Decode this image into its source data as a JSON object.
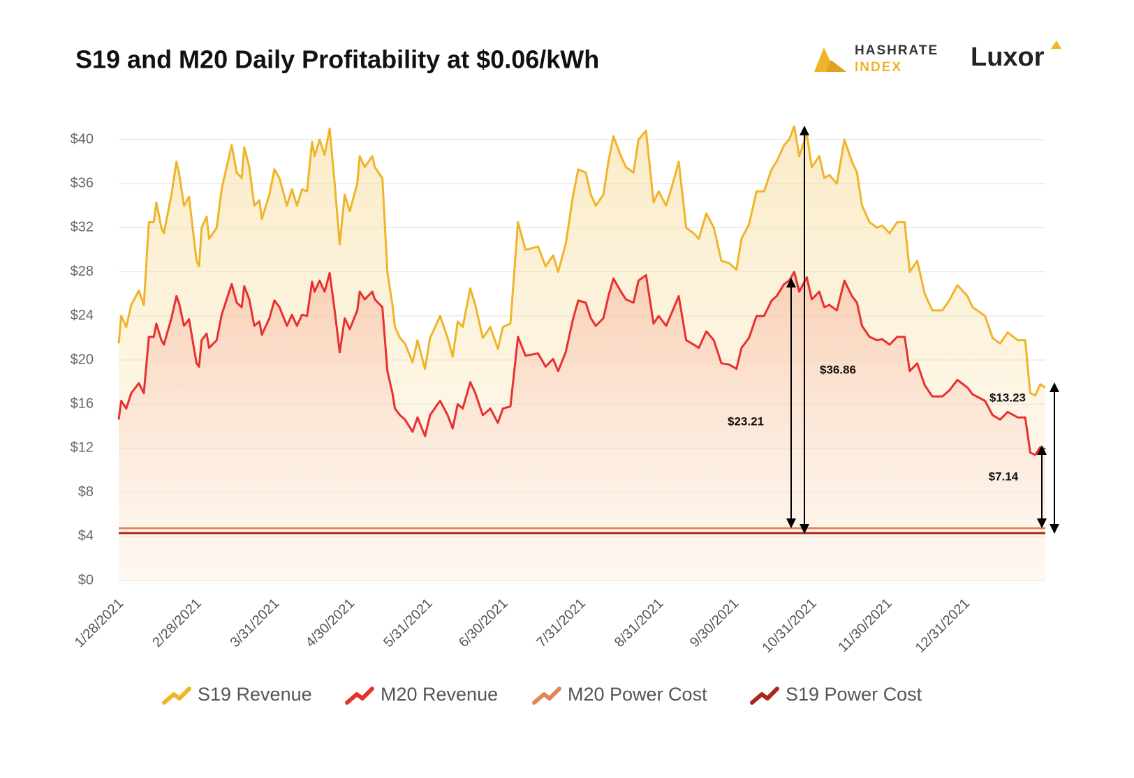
{
  "chart_data": {
    "type": "line",
    "title": "S19 and M20 Daily Profitability at $0.06/kWh",
    "logos": {
      "hashrate": "HASHRATE",
      "index": "INDEX",
      "luxor": "Luxor"
    },
    "x": [
      "1/28/2021",
      "1/29/2021",
      "1/31/2021",
      "2/2/2021",
      "2/5/2021",
      "2/7/2021",
      "2/9/2021",
      "2/11/2021",
      "2/12/2021",
      "2/14/2021",
      "2/15/2021",
      "2/18/2021",
      "2/20/2021",
      "2/21/2021",
      "2/23/2021",
      "2/25/2021",
      "2/28/2021",
      "3/1/2021",
      "3/2/2021",
      "3/4/2021",
      "3/5/2021",
      "3/8/2021",
      "3/10/2021",
      "3/12/2021",
      "3/14/2021",
      "3/16/2021",
      "3/18/2021",
      "3/19/2021",
      "3/21/2021",
      "3/23/2021",
      "3/25/2021",
      "3/26/2021",
      "3/29/2021",
      "3/31/2021",
      "4/2/2021",
      "4/5/2021",
      "4/7/2021",
      "4/9/2021",
      "4/11/2021",
      "4/13/2021",
      "4/15/2021",
      "4/16/2021",
      "4/18/2021",
      "4/20/2021",
      "4/22/2021",
      "4/24/2021",
      "4/26/2021",
      "4/28/2021",
      "4/30/2021",
      "5/3/2021",
      "5/4/2021",
      "5/6/2021",
      "5/9/2021",
      "5/10/2021",
      "5/13/2021",
      "5/15/2021",
      "5/17/2021",
      "5/18/2021",
      "5/20/2021",
      "5/22/2021",
      "5/25/2021",
      "5/27/2021",
      "5/30/2021",
      "6/1/2021",
      "6/4/2021",
      "6/5/2021",
      "6/8/2021",
      "6/10/2021",
      "6/12/2021",
      "6/14/2021",
      "6/17/2021",
      "6/19/2021",
      "6/22/2021",
      "6/25/2021",
      "6/28/2021",
      "6/30/2021",
      "7/3/2021",
      "7/6/2021",
      "7/9/2021",
      "7/14/2021",
      "7/17/2021",
      "7/20/2021",
      "7/22/2021",
      "7/25/2021",
      "7/28/2021",
      "7/30/2021",
      "8/2/2021",
      "8/4/2021",
      "8/6/2021",
      "8/9/2021",
      "8/11/2021",
      "8/13/2021",
      "8/16/2021",
      "8/18/2021",
      "8/21/2021",
      "8/23/2021",
      "8/26/2021",
      "8/29/2021",
      "8/31/2021",
      "9/3/2021",
      "9/6/2021",
      "9/8/2021",
      "9/11/2021",
      "9/14/2021",
      "9/16/2021",
      "9/19/2021",
      "9/22/2021",
      "9/25/2021",
      "9/28/2021",
      "10/1/2021",
      "10/3/2021",
      "10/6/2021",
      "10/9/2021",
      "10/12/2021",
      "10/15/2021",
      "10/17/2021",
      "10/20/2021",
      "10/22/2021",
      "10/24/2021",
      "10/26/2021",
      "10/29/2021",
      "10/31/2021",
      "11/3/2021",
      "11/5/2021",
      "11/7/2021",
      "11/10/2021",
      "11/13/2021",
      "11/16/2021",
      "11/18/2021",
      "11/20/2021",
      "11/23/2021",
      "11/26/2021",
      "11/28/2021",
      "12/1/2021",
      "12/4/2021",
      "12/7/2021",
      "12/9/2021",
      "12/12/2021",
      "12/15/2021",
      "12/18/2021",
      "12/22/2021",
      "12/25/2021",
      "12/28/2021",
      "1/1/2022",
      "1/3/2022",
      "1/8/2022",
      "1/11/2022",
      "1/14/2022",
      "1/17/2022",
      "1/21/2022",
      "1/24/2022",
      "1/26/2022",
      "1/28/2022",
      "1/30/2022",
      "2/1/2022"
    ],
    "series": [
      {
        "name": "S19 Revenue",
        "color": "#f0b429",
        "values": [
          21.5,
          24,
          23,
          25,
          26.3,
          25,
          32.5,
          32.5,
          34.3,
          32,
          31.5,
          35,
          38,
          37,
          34,
          34.8,
          29,
          28.5,
          32,
          33,
          31,
          32,
          35.5,
          37.5,
          39.5,
          37,
          36.5,
          39.3,
          37.5,
          34,
          34.5,
          32.8,
          35,
          37.3,
          36.5,
          34,
          35.5,
          34,
          35.5,
          35.3,
          39.8,
          38.5,
          40,
          38.6,
          41,
          36,
          30.5,
          35,
          33.5,
          36,
          38.5,
          37.5,
          38.5,
          37.5,
          36.5,
          28,
          25,
          23,
          22,
          21.5,
          19.8,
          21.8,
          19.2,
          22,
          23.5,
          24,
          22,
          20.3,
          23.5,
          23,
          26.5,
          25,
          22,
          23,
          21,
          23,
          23.3,
          32.5,
          30,
          30.3,
          28.5,
          29.5,
          28,
          30.5,
          35,
          37.3,
          37,
          35,
          34,
          35,
          38,
          40.3,
          38.5,
          37.5,
          37,
          40,
          40.8,
          34.3,
          35.3,
          34,
          36.3,
          38,
          32,
          31.5,
          31,
          33.3,
          32,
          29,
          28.8,
          28.2,
          31,
          32.3,
          35.3,
          35.3,
          37.3,
          38,
          39.5,
          40,
          41.2,
          38.5,
          40.5,
          37.5,
          38.5,
          36.5,
          36.8,
          36,
          40,
          38,
          37,
          34,
          32.5,
          32,
          32.2,
          31.5,
          32.5,
          32.5,
          28,
          29,
          26,
          24.5,
          24.5,
          25.5,
          26.8,
          25.8,
          24.8,
          24,
          22,
          21.5,
          22.5,
          21.8,
          21.8,
          17,
          16.8,
          17.8,
          17.5
        ]
      },
      {
        "name": "M20 Revenue",
        "color": "#e8302f",
        "values": [
          14.6,
          16.3,
          15.6,
          17,
          17.9,
          17,
          22.1,
          22.1,
          23.3,
          21.8,
          21.4,
          23.8,
          25.8,
          25.2,
          23.1,
          23.7,
          19.7,
          19.4,
          21.8,
          22.4,
          21.1,
          21.8,
          24.1,
          25.5,
          26.9,
          25.2,
          24.8,
          26.7,
          25.5,
          23.1,
          23.5,
          22.3,
          23.8,
          25.4,
          24.8,
          23.1,
          24.1,
          23.1,
          24.1,
          24,
          27.1,
          26.2,
          27.2,
          26.2,
          27.9,
          24.5,
          20.7,
          23.8,
          22.8,
          24.5,
          26.2,
          25.5,
          26.2,
          25.5,
          24.8,
          19,
          17,
          15.6,
          15,
          14.6,
          13.5,
          14.8,
          13.1,
          15,
          16,
          16.3,
          15,
          13.8,
          16,
          15.6,
          18,
          17,
          15,
          15.6,
          14.3,
          15.6,
          15.8,
          22.1,
          20.4,
          20.6,
          19.4,
          20.1,
          19,
          20.7,
          23.8,
          25.4,
          25.2,
          23.8,
          23.1,
          23.8,
          25.8,
          27.4,
          26.2,
          25.5,
          25.2,
          27.2,
          27.7,
          23.3,
          24,
          23.1,
          24.7,
          25.8,
          21.8,
          21.4,
          21.1,
          22.6,
          21.8,
          19.7,
          19.6,
          19.2,
          21.1,
          22,
          24,
          24,
          25.4,
          25.8,
          26.9,
          27.2,
          28,
          26.2,
          27.5,
          25.5,
          26.2,
          24.8,
          25,
          24.5,
          27.2,
          25.8,
          25.2,
          23.1,
          22.1,
          21.8,
          21.9,
          21.4,
          22.1,
          22.1,
          19,
          19.7,
          17.7,
          16.7,
          16.7,
          17.3,
          18.2,
          17.5,
          16.9,
          16.3,
          15,
          14.6,
          15.3,
          14.8,
          14.8,
          11.6,
          11.4,
          12.1,
          11.9
        ]
      },
      {
        "name": "M20 Power Cost",
        "color": "#e0875a",
        "value": 4.75
      },
      {
        "name": "S19 Power Cost",
        "color": "#a8281e",
        "value": 4.3
      }
    ],
    "xlim": [
      "1/28/2021",
      "2/1/2022"
    ],
    "xticks": [
      "1/28/2021",
      "2/28/2021",
      "3/31/2021",
      "4/30/2021",
      "5/31/2021",
      "6/30/2021",
      "7/31/2021",
      "8/31/2021",
      "9/30/2021",
      "10/31/2021",
      "11/30/2021",
      "12/31/2021"
    ],
    "ylim": [
      0,
      41.3
    ],
    "yticks": [
      {
        "value": 0,
        "label": "$0"
      },
      {
        "value": 4,
        "label": "$4"
      },
      {
        "value": 8,
        "label": "$8"
      },
      {
        "value": 12,
        "label": "$12"
      },
      {
        "value": 16,
        "label": "$16"
      },
      {
        "value": 20,
        "label": "$20"
      },
      {
        "value": 24,
        "label": "$24"
      },
      {
        "value": 28,
        "label": "$28"
      },
      {
        "value": 32,
        "label": "$32"
      },
      {
        "value": 36,
        "label": "$36"
      },
      {
        "value": 40,
        "label": "$40"
      }
    ],
    "grid": true,
    "annotations": [
      "$23.21",
      "$36.86",
      "$13.23",
      "$7.14"
    ]
  }
}
